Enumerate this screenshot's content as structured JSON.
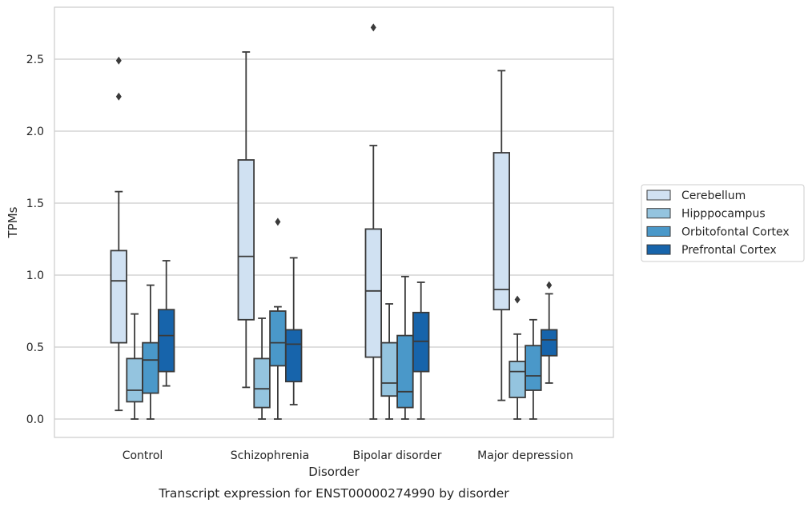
{
  "chart_data": {
    "type": "box",
    "title": "",
    "caption": "Transcript expression for ENST00000274990 by disorder",
    "xlabel": "Disorder",
    "ylabel": "TPMs",
    "ylim": [
      -0.13,
      2.85
    ],
    "yticks": [
      0.0,
      0.5,
      1.0,
      1.5,
      2.0,
      2.5
    ],
    "ytick_labels": [
      "0.0",
      "0.5",
      "1.0",
      "1.5",
      "2.0",
      "2.5"
    ],
    "grid": "horizontal",
    "legend_position": "right",
    "categories": [
      "Control",
      "Schizophrenia",
      "Bipolar disorder",
      "Major depression"
    ],
    "series": [
      {
        "name": "Cerebellum",
        "color": "#d0e1f2",
        "boxes": [
          {
            "whisker_low": 0.06,
            "q1": 0.53,
            "median": 0.96,
            "q3": 1.17,
            "whisker_high": 1.58,
            "outliers": [
              2.24,
              2.49
            ]
          },
          {
            "whisker_low": 0.22,
            "q1": 0.69,
            "median": 1.13,
            "q3": 1.8,
            "whisker_high": 2.55,
            "outliers": []
          },
          {
            "whisker_low": 0.0,
            "q1": 0.43,
            "median": 0.89,
            "q3": 1.32,
            "whisker_high": 1.9,
            "outliers": [
              2.72
            ]
          },
          {
            "whisker_low": 0.13,
            "q1": 0.76,
            "median": 0.9,
            "q3": 1.85,
            "whisker_high": 2.42,
            "outliers": []
          }
        ]
      },
      {
        "name": "Hipppocampus",
        "color": "#94c4df",
        "boxes": [
          {
            "whisker_low": 0.0,
            "q1": 0.12,
            "median": 0.2,
            "q3": 0.42,
            "whisker_high": 0.73,
            "outliers": []
          },
          {
            "whisker_low": 0.0,
            "q1": 0.08,
            "median": 0.21,
            "q3": 0.42,
            "whisker_high": 0.7,
            "outliers": []
          },
          {
            "whisker_low": 0.0,
            "q1": 0.16,
            "median": 0.25,
            "q3": 0.53,
            "whisker_high": 0.8,
            "outliers": []
          },
          {
            "whisker_low": 0.0,
            "q1": 0.15,
            "median": 0.33,
            "q3": 0.4,
            "whisker_high": 0.59,
            "outliers": [
              0.83
            ]
          }
        ]
      },
      {
        "name": "Orbitofontal Cortex",
        "color": "#4a98c9",
        "boxes": [
          {
            "whisker_low": 0.0,
            "q1": 0.18,
            "median": 0.41,
            "q3": 0.53,
            "whisker_high": 0.93,
            "outliers": []
          },
          {
            "whisker_low": 0.0,
            "q1": 0.37,
            "median": 0.53,
            "q3": 0.75,
            "whisker_high": 0.78,
            "outliers": [
              1.37
            ]
          },
          {
            "whisker_low": 0.0,
            "q1": 0.08,
            "median": 0.19,
            "q3": 0.58,
            "whisker_high": 0.99,
            "outliers": []
          },
          {
            "whisker_low": 0.0,
            "q1": 0.2,
            "median": 0.3,
            "q3": 0.51,
            "whisker_high": 0.69,
            "outliers": []
          }
        ]
      },
      {
        "name": "Prefrontal Cortex",
        "color": "#1764ab",
        "boxes": [
          {
            "whisker_low": 0.23,
            "q1": 0.33,
            "median": 0.58,
            "q3": 0.76,
            "whisker_high": 1.1,
            "outliers": []
          },
          {
            "whisker_low": 0.1,
            "q1": 0.26,
            "median": 0.52,
            "q3": 0.62,
            "whisker_high": 1.12,
            "outliers": []
          },
          {
            "whisker_low": 0.0,
            "q1": 0.33,
            "median": 0.54,
            "q3": 0.74,
            "whisker_high": 0.95,
            "outliers": []
          },
          {
            "whisker_low": 0.25,
            "q1": 0.44,
            "median": 0.55,
            "q3": 0.62,
            "whisker_high": 0.87,
            "outliers": [
              0.93
            ]
          }
        ]
      }
    ]
  }
}
